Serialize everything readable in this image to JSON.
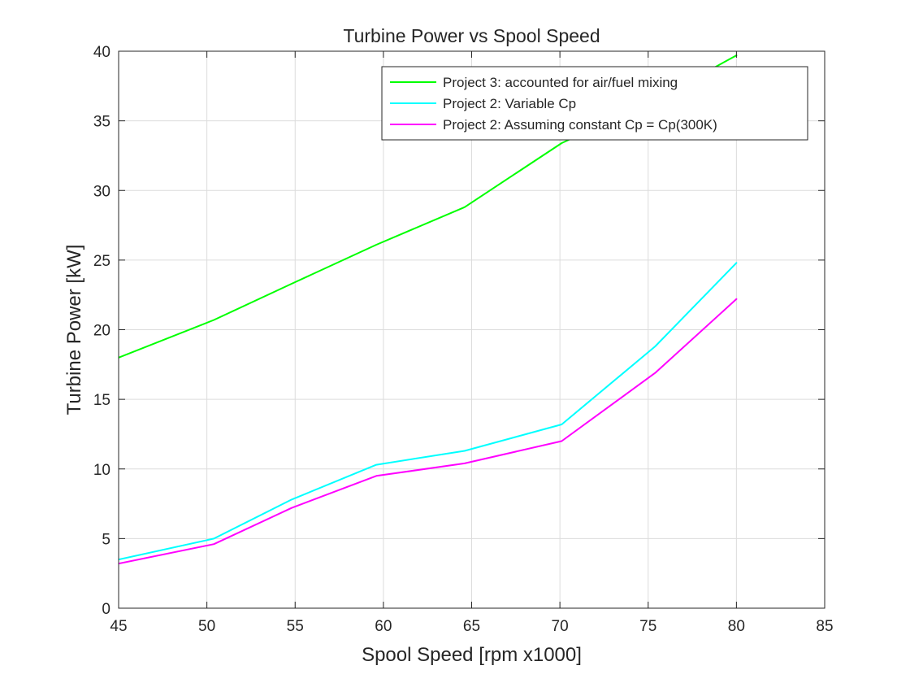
{
  "chart_data": {
    "type": "line",
    "title": "Turbine Power vs Spool Speed",
    "xlabel": "Spool Speed [rpm x1000]",
    "ylabel": "Turbine Power [kW]",
    "xlim": [
      45,
      85
    ],
    "ylim": [
      0,
      40
    ],
    "xticks": [
      45,
      50,
      55,
      60,
      65,
      70,
      75,
      80,
      85
    ],
    "yticks": [
      0,
      5,
      10,
      15,
      20,
      25,
      30,
      35,
      40
    ],
    "grid": true,
    "legend_position": "top-right",
    "series": [
      {
        "name": "Project 3: accounted for air/fuel mixing",
        "color": "#00ff00",
        "x": [
          45,
          50.4,
          54.8,
          59.6,
          64.6,
          70.1,
          75.4,
          80
        ],
        "y": [
          18.0,
          20.7,
          23.3,
          26.1,
          28.8,
          33.4,
          36.5,
          39.7
        ]
      },
      {
        "name": "Project 2: Variable Cp",
        "color": "#00ffff",
        "x": [
          45,
          50.4,
          54.8,
          59.6,
          64.6,
          70.1,
          75.4,
          80
        ],
        "y": [
          3.5,
          5.0,
          7.8,
          10.3,
          11.3,
          13.2,
          18.8,
          24.8
        ]
      },
      {
        "name": "Project 2: Assuming constant Cp = Cp(300K)",
        "color": "#ff00ff",
        "x": [
          45,
          50.4,
          54.8,
          59.6,
          64.6,
          70.1,
          75.4,
          80
        ],
        "y": [
          3.2,
          4.6,
          7.2,
          9.5,
          10.4,
          12.0,
          16.9,
          22.2
        ]
      }
    ]
  }
}
